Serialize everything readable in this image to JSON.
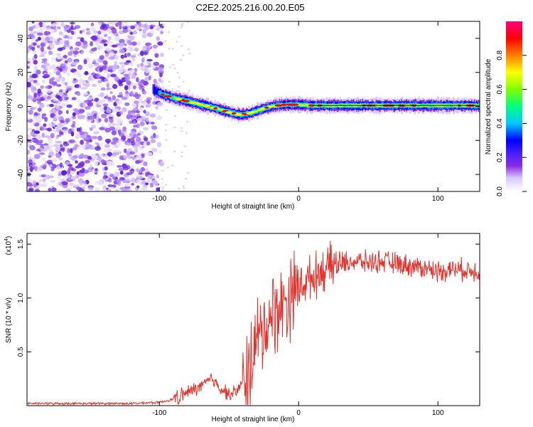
{
  "title": "C2E2.2025.216.00.20.E05",
  "chart_data": [
    {
      "type": "heatmap",
      "xlabel": "Height of straight line (km)",
      "ylabel": "Frequency (Hz)",
      "xlim": [
        -195,
        130
      ],
      "ylim": [
        -50,
        50
      ],
      "xticks": [
        -100,
        0,
        100
      ],
      "yticks": [
        -40,
        -20,
        0,
        20,
        40
      ],
      "colorbar": {
        "label": "Normalized spectral amplitude",
        "range": [
          0.0,
          1.0
        ],
        "ticks": [
          0.0,
          0.2,
          0.4,
          0.6,
          0.8
        ],
        "colors": [
          "#ffffff",
          "#d8c8ff",
          "#8a2be2",
          "#4b20ff",
          "#0000ff",
          "#00c8ff",
          "#00ff80",
          "#7fff00",
          "#ffff00",
          "#ff8000",
          "#ff0000",
          "#ff0080"
        ]
      },
      "noise_region_x": [
        -195,
        -98
      ],
      "ridge": {
        "x": [
          -105,
          -98,
          -90,
          -80,
          -70,
          -60,
          -50,
          -42,
          -35,
          -28,
          -20,
          -10,
          0,
          10,
          30,
          60,
          90,
          130
        ],
        "freq": [
          10,
          7,
          5,
          3,
          1,
          -1,
          -3.5,
          -5,
          -4,
          -2,
          0,
          1,
          1,
          0.5,
          0.5,
          0.5,
          0.5,
          0.5
        ],
        "amplitude": [
          0.3,
          0.5,
          0.7,
          0.75,
          0.7,
          0.75,
          0.7,
          0.7,
          0.75,
          0.8,
          0.85,
          0.9,
          0.9,
          0.9,
          0.9,
          0.9,
          0.9,
          0.9
        ]
      }
    },
    {
      "type": "line",
      "xlabel": "Height of straight line (km)",
      "ylabel": "SNR (10 * v/v)",
      "yscale_label": "(x10",
      "yscale_exp": "4",
      "xlim": [
        -195,
        130
      ],
      "ylim": [
        0,
        1.6
      ],
      "xticks": [
        -100,
        0,
        100
      ],
      "yticks": [
        0.5,
        1.0,
        1.5
      ],
      "color": "#e8302a",
      "series": [
        {
          "x": [
            -195,
            -120,
            -100,
            -90,
            -80,
            -70,
            -62,
            -55,
            -48,
            -40,
            -35,
            -30,
            -25,
            -20,
            -15,
            -10,
            -5,
            0,
            5,
            10,
            20,
            30,
            40,
            50,
            60,
            70,
            80,
            90,
            100,
            110,
            120,
            130
          ],
          "y": [
            0.02,
            0.02,
            0.03,
            0.06,
            0.12,
            0.18,
            0.25,
            0.15,
            0.1,
            0.2,
            0.4,
            0.6,
            0.7,
            0.85,
            0.9,
            0.95,
            1.05,
            1.1,
            1.15,
            1.2,
            1.28,
            1.32,
            1.34,
            1.33,
            1.34,
            1.32,
            1.3,
            1.28,
            1.25,
            1.27,
            1.26,
            1.25
          ]
        }
      ]
    }
  ]
}
